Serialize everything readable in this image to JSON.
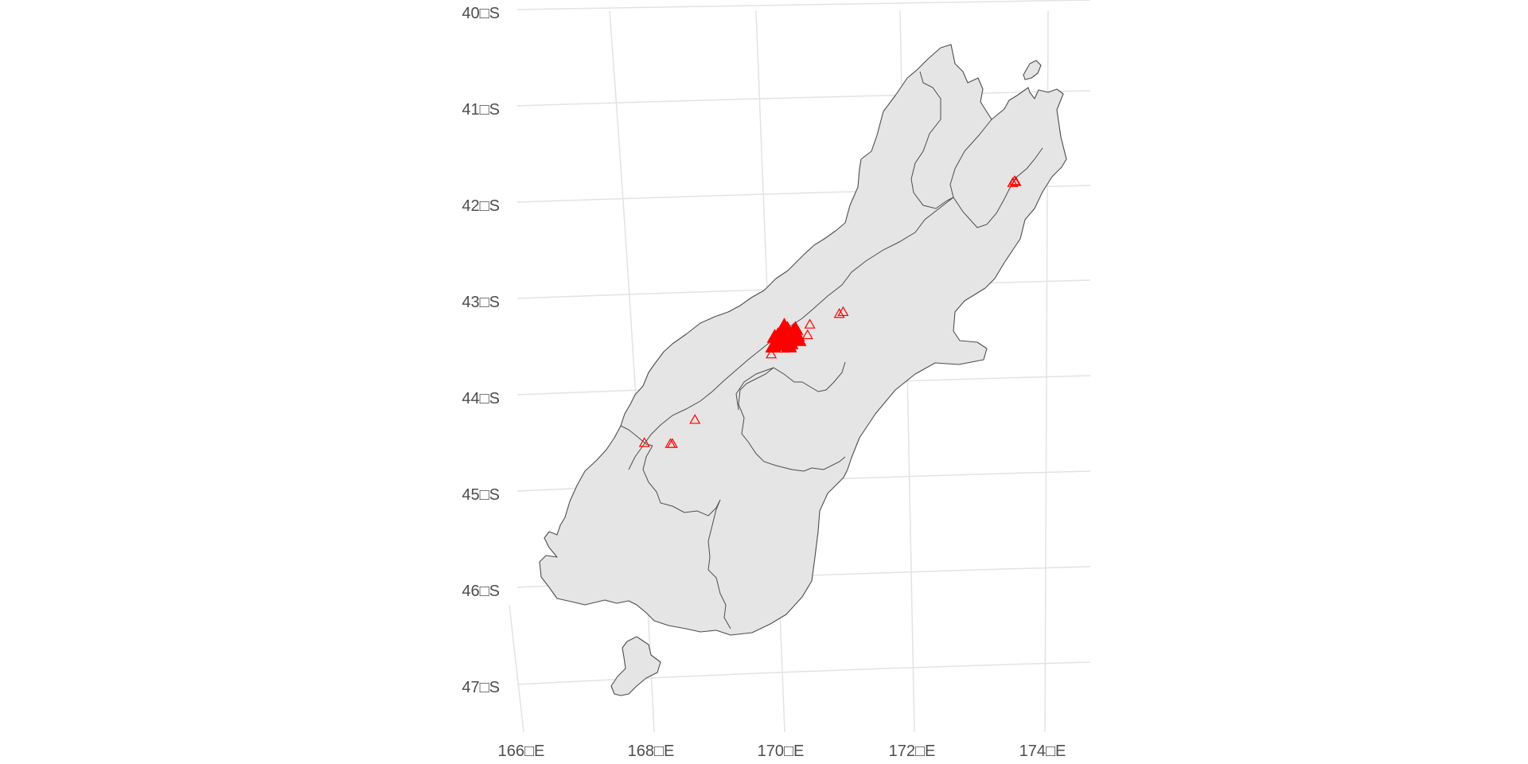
{
  "map": {
    "region": "South Island, New Zealand",
    "background_color": "#ffffff",
    "land_fill": "#e5e5e5",
    "land_stroke": "#4d4d4d",
    "grid_color": "#e3e3e3",
    "marker_color": "#ff0000",
    "marker_shape": "open-triangle",
    "lat_labels": [
      "40□S",
      "41□S",
      "42□S",
      "43□S",
      "44□S",
      "45□S",
      "46□S",
      "47□S"
    ],
    "lon_labels": [
      "166□E",
      "168□E",
      "170□E",
      "172□E",
      "174□E"
    ],
    "lat_ticks": [
      -40,
      -41,
      -42,
      -43,
      -44,
      -45,
      -46,
      -47
    ],
    "lon_ticks": [
      166,
      168,
      170,
      172,
      174
    ],
    "points": [
      {
        "lon": 173.69,
        "lat": -41.78
      },
      {
        "lon": 173.71,
        "lat": -41.79
      },
      {
        "lon": 173.66,
        "lat": -41.8
      },
      {
        "lon": 170.98,
        "lat": -43.14
      },
      {
        "lon": 170.92,
        "lat": -43.16
      },
      {
        "lon": 170.46,
        "lat": -43.27
      },
      {
        "lon": 170.42,
        "lat": -43.38
      },
      {
        "lon": 170.22,
        "lat": -43.42
      },
      {
        "lon": 170.12,
        "lat": -43.48
      },
      {
        "lon": 170.05,
        "lat": -43.52
      },
      {
        "lon": 169.85,
        "lat": -43.58
      },
      {
        "lon": 169.88,
        "lat": -43.52
      },
      {
        "lon": 168.64,
        "lat": -44.26
      },
      {
        "lon": 168.28,
        "lat": -44.51
      },
      {
        "lon": 168.25,
        "lat": -44.51
      },
      {
        "lon": 167.85,
        "lat": -44.5
      }
    ],
    "cluster_center": {
      "lon": 170.06,
      "lat": -43.4
    }
  }
}
